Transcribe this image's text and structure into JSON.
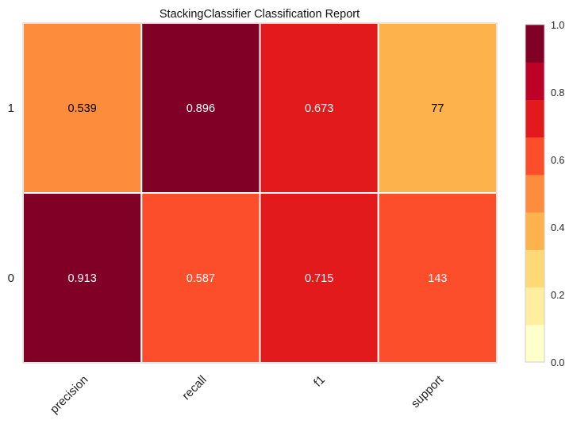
{
  "chart_data": {
    "type": "heatmap",
    "title": "StackingClassifier Classification Report",
    "xlabel": "",
    "ylabel": "",
    "columns": [
      "precision",
      "recall",
      "f1",
      "support"
    ],
    "rows": [
      "1",
      "0"
    ],
    "cells": [
      [
        {
          "label": "0.539",
          "color_value": 0.539
        },
        {
          "label": "0.896",
          "color_value": 0.896
        },
        {
          "label": "0.673",
          "color_value": 0.673
        },
        {
          "label": "77",
          "color_value": 0.35
        }
      ],
      [
        {
          "label": "0.913",
          "color_value": 0.913
        },
        {
          "label": "0.587",
          "color_value": 0.587
        },
        {
          "label": "0.715",
          "color_value": 0.715
        },
        {
          "label": "143",
          "color_value": 0.65
        }
      ]
    ],
    "colorbar": {
      "min": 0.0,
      "max": 1.0,
      "ticks": [
        "0.0",
        "0.2",
        "0.4",
        "0.6",
        "0.8",
        "1.0"
      ],
      "colormap": [
        "#ffffcc",
        "#ffeda0",
        "#fed976",
        "#feb24c",
        "#fd8d3c",
        "#fc4e2a",
        "#e31a1c",
        "#bd0026",
        "#800026"
      ]
    },
    "grid": false
  }
}
